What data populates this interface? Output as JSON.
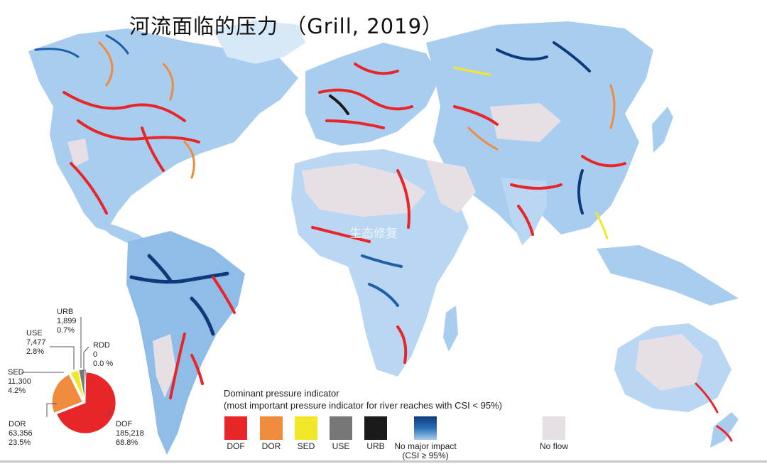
{
  "title": "河流面临的压力 （Grill, 2019）",
  "watermark": "生态修复",
  "legend": {
    "title_line1": "Dominant pressure indicator",
    "title_line2": "(most important pressure indicator for river reaches with CSI < 95%)",
    "items": [
      {
        "key": "DOF",
        "label": "DOF",
        "color": "#e8262a"
      },
      {
        "key": "DOR",
        "label": "DOR",
        "color": "#f08a3c"
      },
      {
        "key": "SED",
        "label": "SED",
        "color": "#f2e829"
      },
      {
        "key": "USE",
        "label": "USE",
        "color": "#777777"
      },
      {
        "key": "URB",
        "label": "URB",
        "color": "#1a1a1a"
      },
      {
        "key": "NMI",
        "label": "No major impact",
        "label2": "(CSI ≥ 95%)",
        "color": "#2b6fb5"
      },
      {
        "key": "NOF",
        "label": "No flow",
        "color": "#e6e0e6"
      }
    ]
  },
  "chart_data": {
    "type": "pie",
    "slices": [
      {
        "name": "DOF",
        "count": "185,218",
        "percent": "68.8%",
        "value": 68.8,
        "color": "#e8262a"
      },
      {
        "name": "DOR",
        "count": "63,356",
        "percent": "23.5%",
        "value": 23.5,
        "color": "#f08a3c"
      },
      {
        "name": "SED",
        "count": "11,300",
        "percent": "4.2%",
        "value": 4.2,
        "color": "#f2e829"
      },
      {
        "name": "USE",
        "count": "7,477",
        "percent": "2.8%",
        "value": 2.8,
        "color": "#777777"
      },
      {
        "name": "URB",
        "count": "1,899",
        "percent": "0.7%",
        "value": 0.7,
        "color": "#1a1a1a"
      },
      {
        "name": "RDD",
        "count": "0",
        "percent": "0.0 %",
        "value": 0.0,
        "color": "#e8262a"
      }
    ]
  }
}
